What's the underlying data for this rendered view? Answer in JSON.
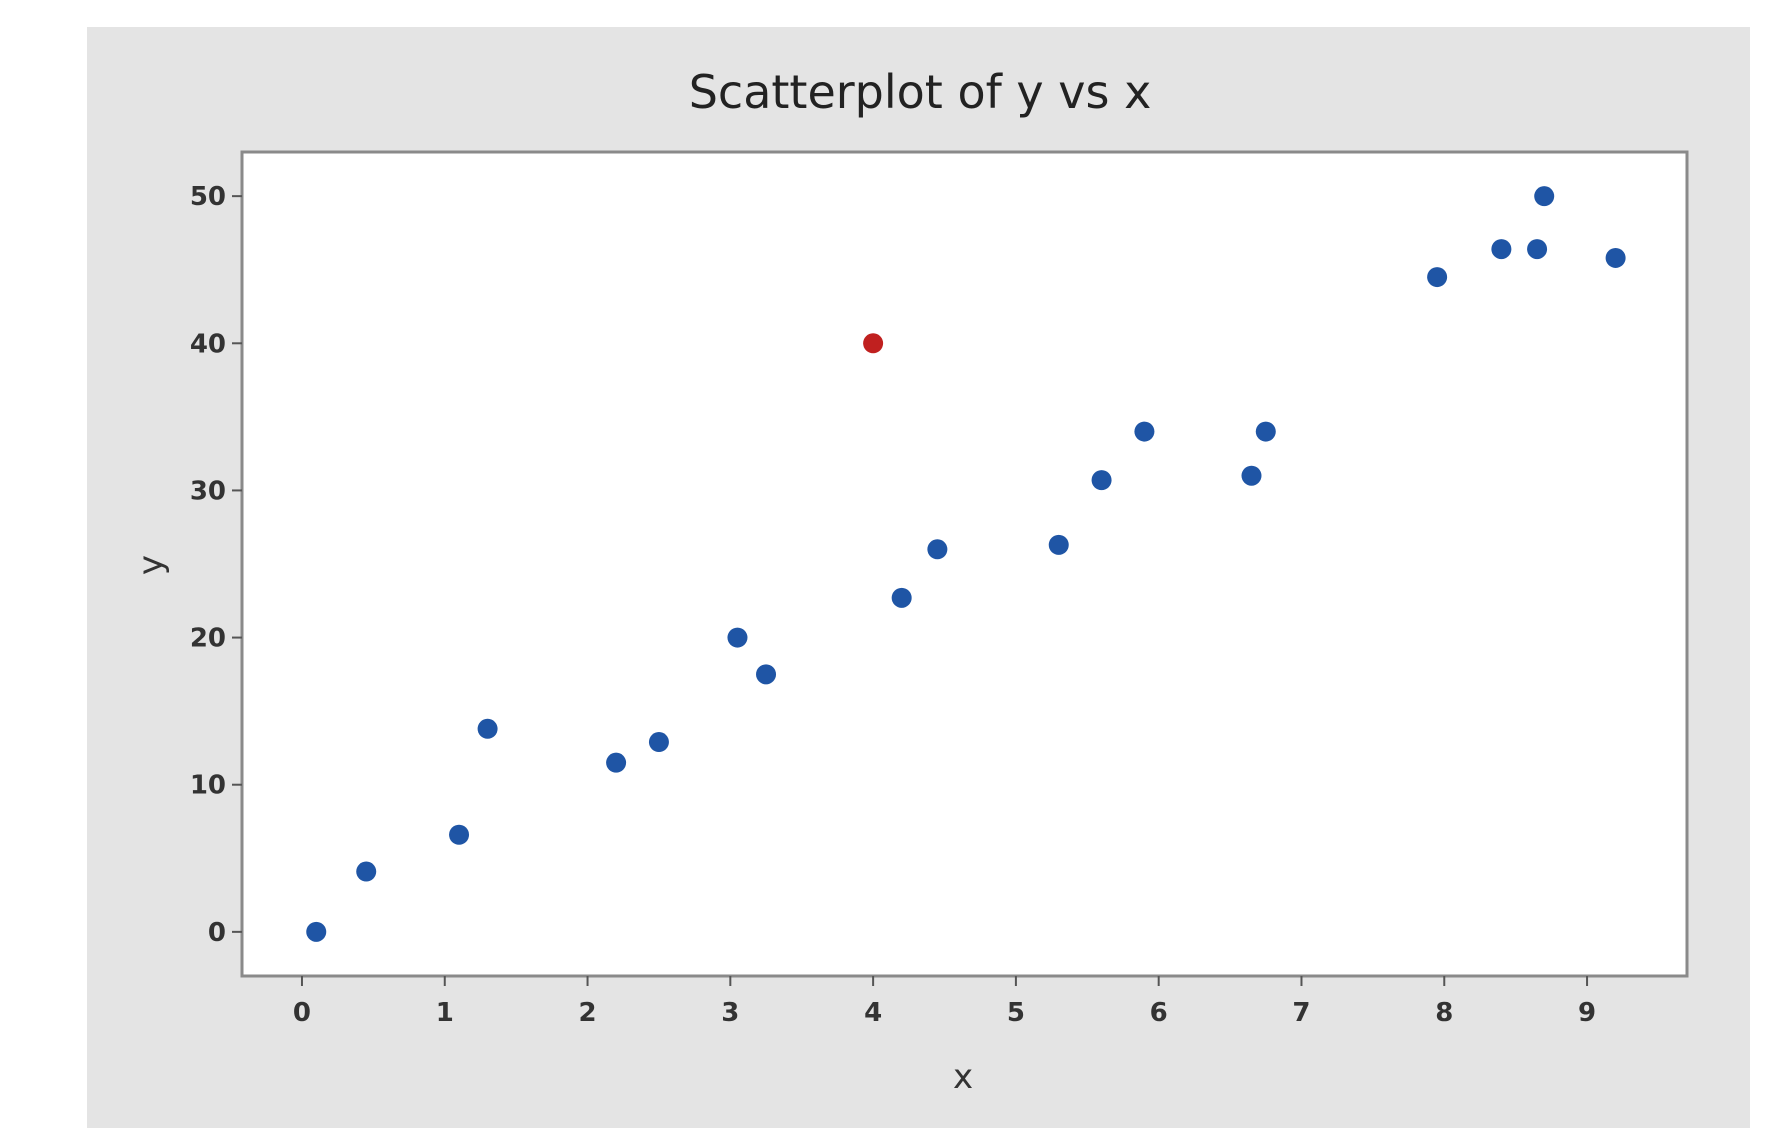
{
  "chart_data": {
    "type": "scatter",
    "title": "Scatterplot of y vs x",
    "xlabel": "x",
    "ylabel": "y",
    "xlim": [
      -0.42,
      9.7
    ],
    "ylim": [
      -3,
      53
    ],
    "x_ticks": [
      0,
      1,
      2,
      3,
      4,
      5,
      6,
      7,
      8,
      9
    ],
    "y_ticks": [
      0,
      10,
      20,
      30,
      40,
      50
    ],
    "grid": false,
    "legend": "none",
    "series": [
      {
        "color": "#1f55a5",
        "points": [
          {
            "x": 0.1,
            "y": 0
          },
          {
            "x": 0.45,
            "y": 4.1
          },
          {
            "x": 1.1,
            "y": 6.6
          },
          {
            "x": 1.3,
            "y": 13.8
          },
          {
            "x": 2.2,
            "y": 11.5
          },
          {
            "x": 2.5,
            "y": 12.9
          },
          {
            "x": 3.05,
            "y": 20
          },
          {
            "x": 3.25,
            "y": 17.5
          },
          {
            "x": 4.2,
            "y": 22.7
          },
          {
            "x": 4.45,
            "y": 26
          },
          {
            "x": 5.3,
            "y": 26.3
          },
          {
            "x": 5.6,
            "y": 30.7
          },
          {
            "x": 5.9,
            "y": 34
          },
          {
            "x": 6.65,
            "y": 31
          },
          {
            "x": 6.75,
            "y": 34
          },
          {
            "x": 7.95,
            "y": 44.5
          },
          {
            "x": 8.4,
            "y": 46.4
          },
          {
            "x": 8.65,
            "y": 46.4
          },
          {
            "x": 8.7,
            "y": 50
          },
          {
            "x": 9.2,
            "y": 45.8
          }
        ]
      },
      {
        "color": "#c0201f",
        "points": [
          {
            "x": 4.0,
            "y": 40
          }
        ]
      }
    ]
  }
}
